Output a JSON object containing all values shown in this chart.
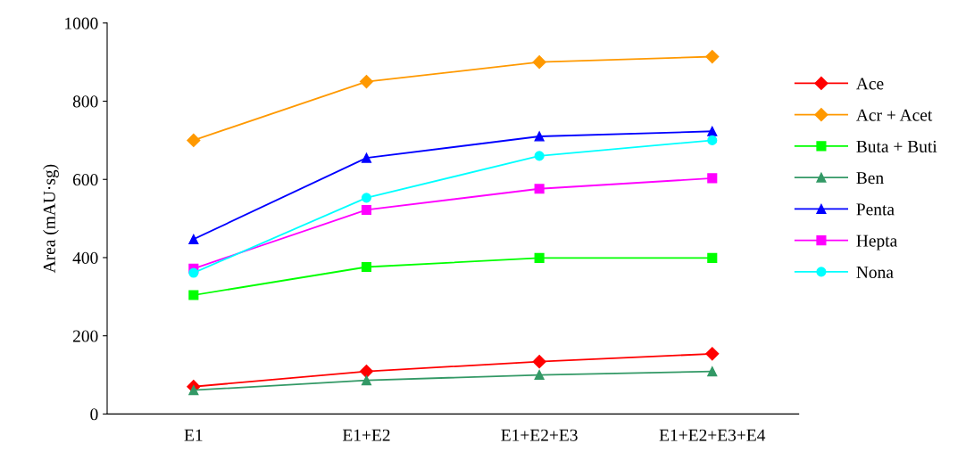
{
  "chart_data": {
    "type": "line",
    "ylabel": "Area (mAU·sg)",
    "categories": [
      "E1",
      "E1+E2",
      "E1+E2+E3",
      "E1+E2+E3+E4"
    ],
    "ylim": [
      0,
      1000
    ],
    "yticks": [
      0,
      200,
      400,
      600,
      800,
      1000
    ],
    "grid": false,
    "legend": "right",
    "series": [
      {
        "name": "Ace",
        "color": "#ff0000",
        "marker": "diamond",
        "values": [
          70,
          109,
          134,
          154
        ]
      },
      {
        "name": "Acr + Acet",
        "color": "#ff9900",
        "marker": "diamond",
        "values": [
          700,
          850,
          900,
          914
        ]
      },
      {
        "name": "Buta + Buti",
        "color": "#00ff00",
        "marker": "square",
        "values": [
          304,
          376,
          399,
          399
        ]
      },
      {
        "name": "Ben",
        "color": "#339966",
        "marker": "triangle",
        "values": [
          61,
          86,
          100,
          109
        ]
      },
      {
        "name": "Penta",
        "color": "#0000ff",
        "marker": "triangle",
        "values": [
          447,
          655,
          710,
          723
        ]
      },
      {
        "name": "Hepta",
        "color": "#ff00ff",
        "marker": "square",
        "values": [
          372,
          522,
          576,
          603
        ]
      },
      {
        "name": "Nona",
        "color": "#00ffff",
        "marker": "circle",
        "values": [
          361,
          553,
          660,
          700
        ]
      }
    ]
  }
}
